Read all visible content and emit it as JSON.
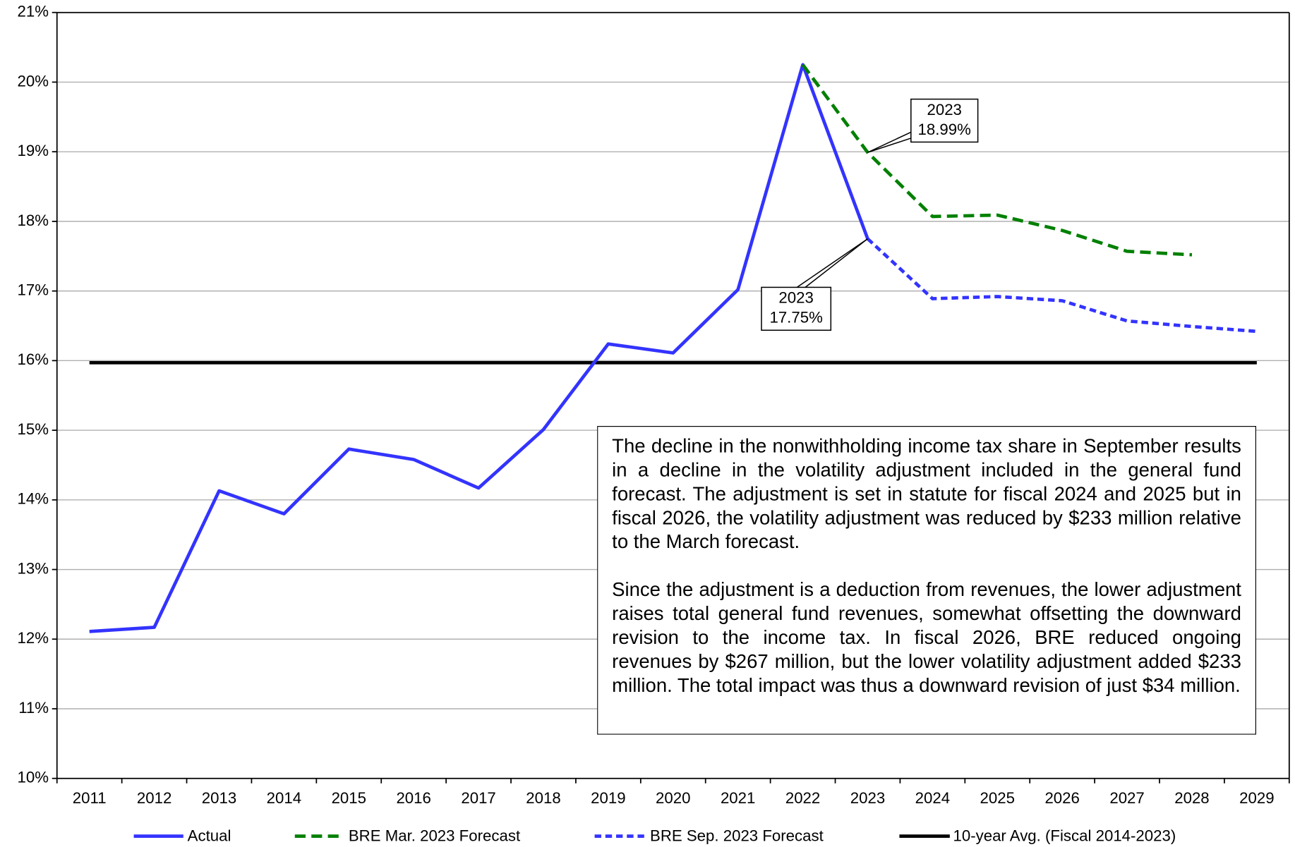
{
  "chart_data": {
    "type": "line",
    "categories": [
      "2011",
      "2012",
      "2013",
      "2014",
      "2015",
      "2016",
      "2017",
      "2018",
      "2019",
      "2020",
      "2021",
      "2022",
      "2023",
      "2024",
      "2025",
      "2026",
      "2027",
      "2028",
      "2029"
    ],
    "series": [
      {
        "name": "Actual",
        "color": "#3333ff",
        "dash": "solid",
        "values": [
          12.11,
          12.17,
          14.13,
          13.8,
          14.73,
          14.58,
          14.17,
          15.01,
          16.24,
          16.11,
          17.02,
          20.25,
          17.75,
          null,
          null,
          null,
          null,
          null,
          null
        ]
      },
      {
        "name": "BRE Mar. 2023 Forecast",
        "color": "#008000",
        "dash": "long",
        "values": [
          null,
          null,
          null,
          null,
          null,
          null,
          null,
          null,
          null,
          null,
          null,
          20.25,
          18.99,
          18.07,
          18.09,
          17.87,
          17.57,
          17.52,
          null
        ]
      },
      {
        "name": "BRE Sep. 2023 Forecast",
        "color": "#3333ff",
        "dash": "short",
        "values": [
          null,
          null,
          null,
          null,
          null,
          null,
          null,
          null,
          null,
          null,
          null,
          null,
          17.75,
          16.89,
          16.92,
          16.86,
          16.57,
          16.49,
          16.42
        ]
      },
      {
        "name": "10-year Avg. (Fiscal 2014-2023)",
        "color": "#000000",
        "dash": "solid",
        "values": [
          15.97,
          15.97,
          15.97,
          15.97,
          15.97,
          15.97,
          15.97,
          15.97,
          15.97,
          15.97,
          15.97,
          15.97,
          15.97,
          15.97,
          15.97,
          15.97,
          15.97,
          15.97,
          15.97
        ]
      }
    ],
    "ylim": [
      10,
      21
    ],
    "yticks": [
      {
        "value": 10,
        "label": "10%"
      },
      {
        "value": 11,
        "label": "11%"
      },
      {
        "value": 12,
        "label": "12%"
      },
      {
        "value": 13,
        "label": "13%"
      },
      {
        "value": 14,
        "label": "14%"
      },
      {
        "value": 15,
        "label": "15%"
      },
      {
        "value": 16,
        "label": "16%"
      },
      {
        "value": 17,
        "label": "17%"
      },
      {
        "value": 18,
        "label": "18%"
      },
      {
        "value": 19,
        "label": "19%"
      },
      {
        "value": 20,
        "label": "20%"
      },
      {
        "value": 21,
        "label": "21%"
      }
    ],
    "grid": true,
    "legend": "bottom",
    "annotations": [
      {
        "lines": [
          "2023",
          "18.99%"
        ]
      },
      {
        "lines": [
          "2023",
          "17.75%"
        ]
      }
    ],
    "note": [
      "The decline in the nonwithholding income tax share in September results in a decline in the volatility adjustment included in the general fund forecast. The adjustment is set in statute for fiscal 2024 and 2025 but in fiscal 2026, the volatility adjustment was reduced by $233 million relative to the March forecast.",
      "Since the adjustment is a deduction from revenues, the lower adjustment raises total general fund revenues, somewhat offsetting the downward revision to the income tax. In fiscal 2026, BRE reduced ongoing revenues by $267 million, but the lower volatility adjustment added $233 million. The total impact was thus a downward revision of just $34 million."
    ]
  }
}
